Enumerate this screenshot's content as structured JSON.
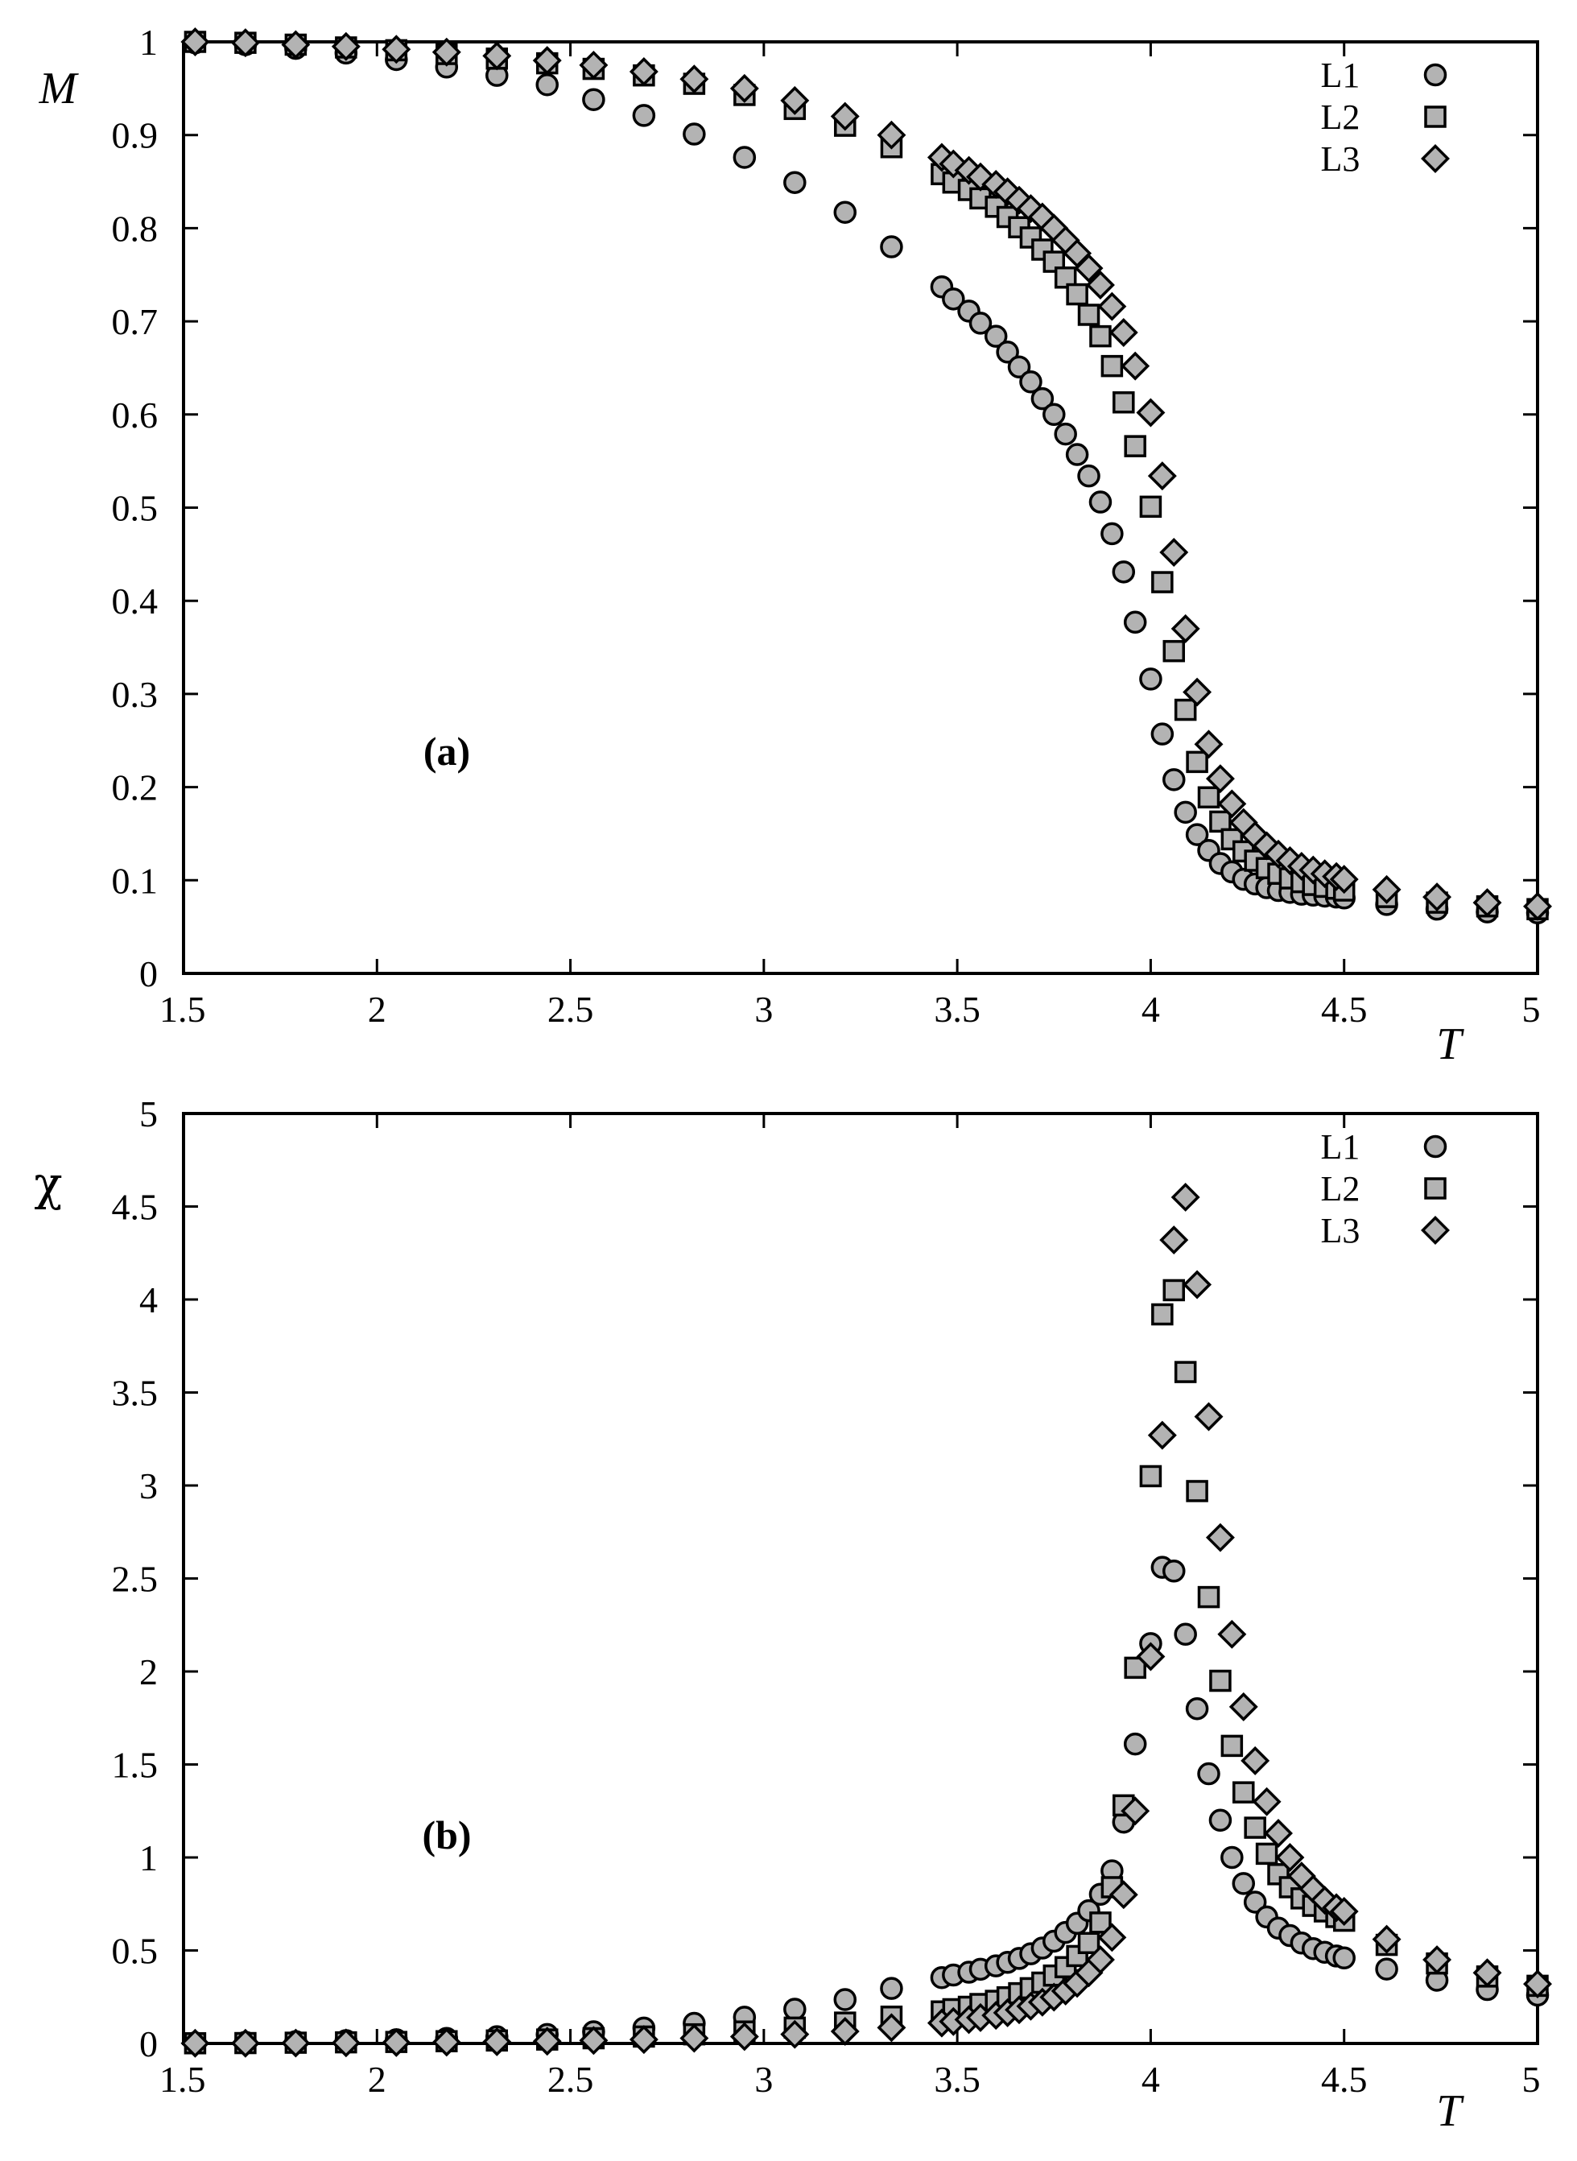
{
  "colors": {
    "marker_fill": "#b3b3b3",
    "marker_edge": "#000000"
  },
  "chart_data": [
    {
      "type": "scatter",
      "panel_label": "(a)",
      "xlabel": "T",
      "ylabel": "M",
      "xlim": [
        1.5,
        5
      ],
      "ylim": [
        0,
        1
      ],
      "xticks": [
        "1.5",
        "2",
        "2.5",
        "3",
        "3.5",
        "4",
        "4.5",
        "5"
      ],
      "yticks": [
        "0",
        "0.1",
        "0.2",
        "0.3",
        "0.4",
        "0.5",
        "0.6",
        "0.7",
        "0.8",
        "0.9",
        "1"
      ],
      "legend_position": "top-right",
      "series": [
        {
          "name": "L1",
          "marker": "circle",
          "x": [
            1.53,
            1.66,
            1.79,
            1.92,
            2.05,
            2.18,
            2.31,
            2.44,
            2.56,
            2.69,
            2.82,
            2.95,
            3.08,
            3.21,
            3.33,
            3.46,
            3.49,
            3.53,
            3.56,
            3.6,
            3.63,
            3.66,
            3.69,
            3.72,
            3.75,
            3.78,
            3.81,
            3.84,
            3.87,
            3.9,
            3.93,
            3.96,
            4.0,
            4.03,
            4.06,
            4.09,
            4.12,
            4.15,
            4.18,
            4.21,
            4.24,
            4.27,
            4.3,
            4.33,
            4.36,
            4.39,
            4.42,
            4.45,
            4.48,
            4.5,
            4.61,
            4.74,
            4.87,
            5.0
          ],
          "y": [
            0.999,
            0.997,
            0.993,
            0.988,
            0.981,
            0.973,
            0.964,
            0.954,
            0.938,
            0.921,
            0.901,
            0.876,
            0.849,
            0.817,
            0.78,
            0.737,
            0.724,
            0.711,
            0.698,
            0.684,
            0.667,
            0.651,
            0.635,
            0.617,
            0.6,
            0.579,
            0.557,
            0.534,
            0.506,
            0.472,
            0.431,
            0.377,
            0.316,
            0.257,
            0.208,
            0.173,
            0.149,
            0.132,
            0.118,
            0.109,
            0.101,
            0.096,
            0.092,
            0.089,
            0.087,
            0.085,
            0.084,
            0.083,
            0.082,
            0.081,
            0.074,
            0.069,
            0.066,
            0.065
          ]
        },
        {
          "name": "L2",
          "marker": "square",
          "x": [
            1.53,
            1.66,
            1.79,
            1.92,
            2.05,
            2.18,
            2.31,
            2.44,
            2.56,
            2.69,
            2.82,
            2.95,
            3.08,
            3.21,
            3.33,
            3.46,
            3.49,
            3.53,
            3.56,
            3.6,
            3.63,
            3.66,
            3.69,
            3.72,
            3.75,
            3.78,
            3.81,
            3.84,
            3.87,
            3.9,
            3.93,
            3.96,
            4.0,
            4.03,
            4.06,
            4.09,
            4.12,
            4.15,
            4.18,
            4.21,
            4.24,
            4.27,
            4.3,
            4.33,
            4.36,
            4.39,
            4.42,
            4.45,
            4.48,
            4.5,
            4.61,
            4.74,
            4.87,
            5.0
          ],
          "y": [
            1.0,
            0.999,
            0.997,
            0.994,
            0.991,
            0.987,
            0.982,
            0.977,
            0.971,
            0.964,
            0.955,
            0.943,
            0.928,
            0.91,
            0.887,
            0.858,
            0.849,
            0.841,
            0.832,
            0.823,
            0.812,
            0.801,
            0.79,
            0.777,
            0.764,
            0.747,
            0.729,
            0.707,
            0.684,
            0.652,
            0.613,
            0.566,
            0.501,
            0.42,
            0.346,
            0.283,
            0.227,
            0.189,
            0.163,
            0.144,
            0.131,
            0.121,
            0.113,
            0.107,
            0.102,
            0.098,
            0.095,
            0.093,
            0.091,
            0.089,
            0.082,
            0.076,
            0.072,
            0.069
          ]
        },
        {
          "name": "L3",
          "marker": "diamond",
          "x": [
            1.53,
            1.66,
            1.79,
            1.92,
            2.05,
            2.18,
            2.31,
            2.44,
            2.56,
            2.69,
            2.82,
            2.95,
            3.08,
            3.21,
            3.33,
            3.46,
            3.49,
            3.53,
            3.56,
            3.6,
            3.63,
            3.66,
            3.69,
            3.72,
            3.75,
            3.78,
            3.81,
            3.84,
            3.87,
            3.9,
            3.93,
            3.96,
            4.0,
            4.03,
            4.06,
            4.09,
            4.12,
            4.15,
            4.18,
            4.21,
            4.24,
            4.27,
            4.3,
            4.33,
            4.36,
            4.39,
            4.42,
            4.45,
            4.48,
            4.5,
            4.61,
            4.74,
            4.87,
            5.0
          ],
          "y": [
            1.0,
            0.999,
            0.997,
            0.995,
            0.992,
            0.989,
            0.985,
            0.98,
            0.975,
            0.968,
            0.96,
            0.95,
            0.937,
            0.92,
            0.9,
            0.876,
            0.869,
            0.862,
            0.855,
            0.847,
            0.839,
            0.83,
            0.821,
            0.812,
            0.8,
            0.787,
            0.773,
            0.757,
            0.739,
            0.716,
            0.688,
            0.652,
            0.602,
            0.534,
            0.452,
            0.37,
            0.302,
            0.246,
            0.209,
            0.182,
            0.162,
            0.148,
            0.137,
            0.128,
            0.121,
            0.115,
            0.111,
            0.107,
            0.104,
            0.101,
            0.09,
            0.082,
            0.076,
            0.072
          ]
        }
      ]
    },
    {
      "type": "scatter",
      "panel_label": "(b)",
      "xlabel": "T",
      "ylabel": "χ",
      "xlim": [
        1.5,
        5
      ],
      "ylim": [
        0,
        5
      ],
      "xticks": [
        "1.5",
        "2",
        "2.5",
        "3",
        "3.5",
        "4",
        "4.5",
        "5"
      ],
      "yticks": [
        "0",
        "0.5",
        "1",
        "1.5",
        "2",
        "2.5",
        "3",
        "3.5",
        "4",
        "4.5",
        "5"
      ],
      "legend_position": "top-right",
      "series": [
        {
          "name": "L1",
          "marker": "circle",
          "x": [
            1.53,
            1.66,
            1.79,
            1.92,
            2.05,
            2.18,
            2.31,
            2.44,
            2.56,
            2.69,
            2.82,
            2.95,
            3.08,
            3.21,
            3.33,
            3.46,
            3.49,
            3.53,
            3.56,
            3.6,
            3.63,
            3.66,
            3.69,
            3.72,
            3.75,
            3.78,
            3.81,
            3.84,
            3.87,
            3.9,
            3.93,
            3.96,
            4.0,
            4.03,
            4.06,
            4.09,
            4.12,
            4.15,
            4.18,
            4.21,
            4.24,
            4.27,
            4.3,
            4.33,
            4.36,
            4.39,
            4.42,
            4.45,
            4.48,
            4.5,
            4.61,
            4.74,
            4.87,
            5.0
          ],
          "y": [
            0.003,
            0.006,
            0.01,
            0.015,
            0.02,
            0.027,
            0.036,
            0.048,
            0.063,
            0.083,
            0.108,
            0.141,
            0.184,
            0.236,
            0.296,
            0.354,
            0.368,
            0.383,
            0.399,
            0.417,
            0.436,
            0.457,
            0.482,
            0.513,
            0.55,
            0.597,
            0.646,
            0.714,
            0.802,
            0.928,
            1.19,
            1.61,
            2.15,
            2.56,
            2.54,
            2.2,
            1.8,
            1.45,
            1.2,
            1.0,
            0.86,
            0.76,
            0.68,
            0.62,
            0.58,
            0.54,
            0.51,
            0.49,
            0.47,
            0.46,
            0.4,
            0.34,
            0.29,
            0.26
          ]
        },
        {
          "name": "L2",
          "marker": "square",
          "x": [
            1.53,
            1.66,
            1.79,
            1.92,
            2.05,
            2.18,
            2.31,
            2.44,
            2.56,
            2.69,
            2.82,
            2.95,
            3.08,
            3.21,
            3.33,
            3.46,
            3.49,
            3.53,
            3.56,
            3.6,
            3.63,
            3.66,
            3.69,
            3.72,
            3.75,
            3.78,
            3.81,
            3.84,
            3.87,
            3.9,
            3.93,
            3.96,
            4.0,
            4.03,
            4.06,
            4.09,
            4.12,
            4.15,
            4.18,
            4.21,
            4.24,
            4.27,
            4.3,
            4.33,
            4.36,
            4.39,
            4.42,
            4.45,
            4.48,
            4.5,
            4.61,
            4.74,
            4.87,
            5.0
          ],
          "y": [
            0.001,
            0.002,
            0.004,
            0.006,
            0.008,
            0.012,
            0.016,
            0.021,
            0.028,
            0.037,
            0.049,
            0.064,
            0.085,
            0.112,
            0.144,
            0.172,
            0.184,
            0.197,
            0.212,
            0.229,
            0.248,
            0.27,
            0.297,
            0.327,
            0.365,
            0.41,
            0.47,
            0.54,
            0.65,
            0.84,
            1.28,
            2.02,
            3.05,
            3.92,
            4.05,
            3.61,
            2.97,
            2.4,
            1.95,
            1.6,
            1.35,
            1.16,
            1.02,
            0.91,
            0.84,
            0.78,
            0.74,
            0.71,
            0.68,
            0.66,
            0.53,
            0.43,
            0.36,
            0.31
          ]
        },
        {
          "name": "L3",
          "marker": "diamond",
          "x": [
            1.53,
            1.66,
            1.79,
            1.92,
            2.05,
            2.18,
            2.31,
            2.44,
            2.56,
            2.69,
            2.82,
            2.95,
            3.08,
            3.21,
            3.33,
            3.46,
            3.49,
            3.53,
            3.56,
            3.6,
            3.63,
            3.66,
            3.69,
            3.72,
            3.75,
            3.78,
            3.81,
            3.84,
            3.87,
            3.9,
            3.93,
            3.96,
            4.0,
            4.03,
            4.06,
            4.09,
            4.12,
            4.15,
            4.18,
            4.21,
            4.24,
            4.27,
            4.3,
            4.33,
            4.36,
            4.39,
            4.42,
            4.45,
            4.48,
            4.5,
            4.61,
            4.74,
            4.87,
            5.0
          ],
          "y": [
            0.001,
            0.001,
            0.002,
            0.003,
            0.005,
            0.007,
            0.009,
            0.012,
            0.016,
            0.021,
            0.028,
            0.037,
            0.049,
            0.065,
            0.085,
            0.11,
            0.118,
            0.128,
            0.139,
            0.151,
            0.165,
            0.181,
            0.2,
            0.222,
            0.249,
            0.282,
            0.323,
            0.38,
            0.45,
            0.57,
            0.8,
            1.25,
            2.08,
            3.27,
            4.32,
            4.55,
            4.08,
            3.37,
            2.72,
            2.2,
            1.81,
            1.52,
            1.3,
            1.13,
            1.0,
            0.9,
            0.83,
            0.77,
            0.73,
            0.71,
            0.56,
            0.45,
            0.38,
            0.32
          ]
        }
      ]
    }
  ]
}
